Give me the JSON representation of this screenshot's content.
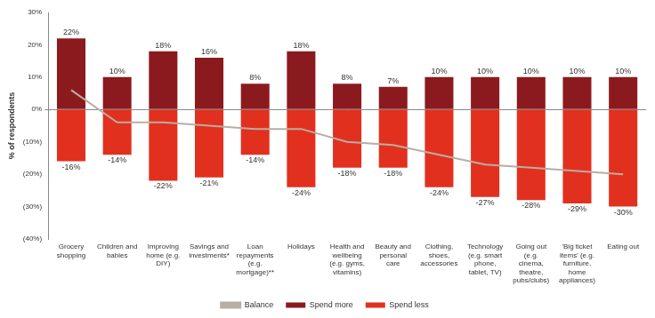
{
  "chart_data": {
    "type": "bar",
    "y_label": "% of respondents",
    "categories": [
      "Grocery shopping",
      "Children and babies",
      "Improving home (e.g. DIY)",
      "Savings and investments*",
      "Loan repayments (e.g. mortgage)**",
      "Holidays",
      "Health and wellbeing (e.g. gyms, vitamins)",
      "Beauty and personal care",
      "Clothing, shoes, accessories",
      "Technology (e.g. smart phone, tablet, TV)",
      "Going out (e.g. cinema, theatre, pubs/clubs)",
      "'Big ticket items' (e.g. furniture, home appliances)",
      "Eating out"
    ],
    "series": [
      {
        "name": "Spend more",
        "type": "bar",
        "color": "#8b1a1f",
        "values": [
          22,
          10,
          18,
          16,
          8,
          18,
          8,
          7,
          10,
          10,
          10,
          10,
          10
        ],
        "value_labels": [
          "22%",
          "10%",
          "18%",
          "16%",
          "8%",
          "18%",
          "8%",
          "7%",
          "10%",
          "10%",
          "10%",
          "10%",
          "10%"
        ]
      },
      {
        "name": "Spend less",
        "type": "bar",
        "color": "#e2301f",
        "values": [
          -16,
          -14,
          -22,
          -21,
          -14,
          -24,
          -18,
          -18,
          -24,
          -27,
          -28,
          -29,
          -30
        ],
        "value_labels": [
          "-16%",
          "-14%",
          "-22%",
          "-21%",
          "-14%",
          "-24%",
          "-18%",
          "-18%",
          "-24%",
          "-27%",
          "-28%",
          "-29%",
          "-30%"
        ]
      },
      {
        "name": "Balance",
        "type": "line",
        "color": "#b8aea3",
        "marker": "none",
        "values": [
          6,
          -4,
          -4,
          -5,
          -6,
          -6,
          -10,
          -11,
          -14,
          -17,
          -18,
          -19,
          -20
        ]
      }
    ],
    "ylim": [
      -40,
      30
    ],
    "yticks": [
      {
        "value": -40,
        "label": "(40%)"
      },
      {
        "value": -30,
        "label": "(30%)"
      },
      {
        "value": -20,
        "label": "(20%)"
      },
      {
        "value": -10,
        "label": "(10%)"
      },
      {
        "value": 0,
        "label": "0%"
      },
      {
        "value": 10,
        "label": "10%"
      },
      {
        "value": 20,
        "label": "20%"
      },
      {
        "value": 30,
        "label": "30%"
      }
    ],
    "grid": false,
    "legend": "bottom",
    "data_labels": true
  }
}
